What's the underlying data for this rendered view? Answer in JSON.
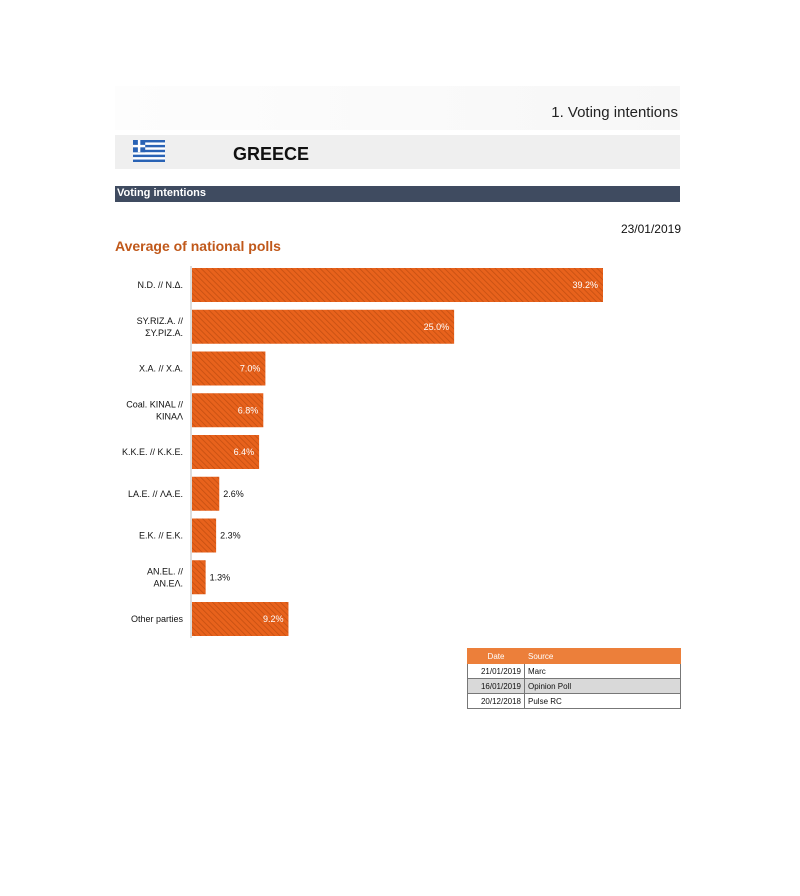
{
  "header": {
    "page_heading": "1. Voting intentions",
    "country": "GREECE",
    "section": "Voting intentions",
    "date": "23/01/2019"
  },
  "flag_icon": "greece-flag-icon",
  "colors": {
    "bar": "#e8621c",
    "bar_hatch": "#c44f12",
    "title": "#c0581a",
    "section_bar": "#3f4b60",
    "table_header": "#ec7f3a"
  },
  "chart_data": {
    "type": "bar",
    "orientation": "horizontal",
    "title": "Average of national polls",
    "categories": [
      [
        "N.D. // N.Δ."
      ],
      [
        "SY.RIZ.A. //",
        "ΣΥ.ΡΙΖ.Α."
      ],
      [
        "X.A. // X.A."
      ],
      [
        "Coal. KINAL //",
        "ΚΙΝΑΛ"
      ],
      [
        "K.K.E. // K.K.E."
      ],
      [
        "LA.E. // ΛΑ.Ε."
      ],
      [
        "E.K. // E.K."
      ],
      [
        "AN.EL. //",
        "AN.EΛ."
      ],
      [
        "Other parties"
      ]
    ],
    "values": [
      39.2,
      25.0,
      7.0,
      6.8,
      6.4,
      2.6,
      2.3,
      1.3,
      9.2
    ],
    "labels": [
      "39.2%",
      "25.0%",
      "7.0%",
      "6.8%",
      "6.4%",
      "2.6%",
      "2.3%",
      "1.3%",
      "9.2%"
    ],
    "xlim": [
      0,
      40
    ],
    "grid": false,
    "legend": false
  },
  "sources": {
    "headers": [
      "Date",
      "Source"
    ],
    "rows": [
      [
        "21/01/2019",
        "Marc"
      ],
      [
        "16/01/2019",
        "Opinion Poll"
      ],
      [
        "20/12/2018",
        "Pulse RC"
      ]
    ]
  }
}
